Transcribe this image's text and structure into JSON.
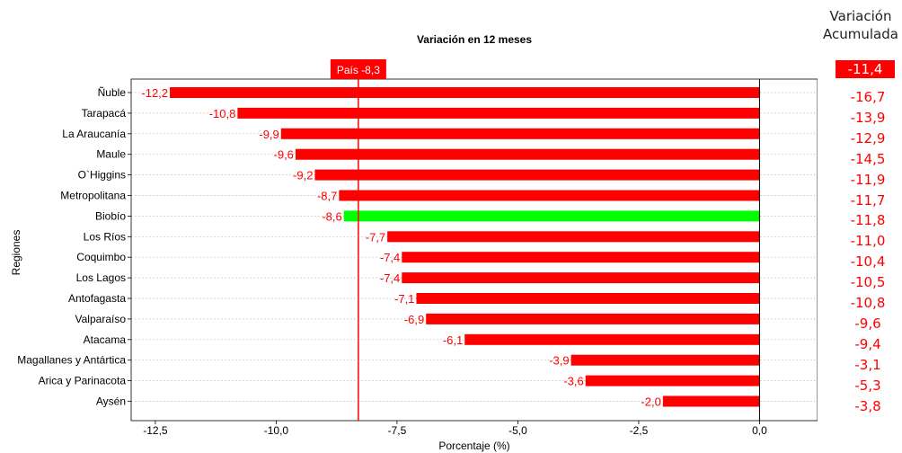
{
  "chart_data": {
    "type": "bar",
    "orientation": "horizontal",
    "title": "Variación en 12 meses",
    "xlabel": "Porcentaje (%)",
    "ylabel": "Regiones",
    "xlim": [
      -13.0,
      1.2
    ],
    "x_ticks": [
      -12.5,
      -10.0,
      -7.5,
      -5.0,
      -2.5,
      0.0
    ],
    "x_tick_labels": [
      "-12,5",
      "-10,0",
      "-7,5",
      "-5,0",
      "-2,5",
      "0,0"
    ],
    "grid": "horizontal dotted",
    "categories": [
      "Ñuble",
      "Tarapacá",
      "La Araucanía",
      "Maule",
      "O`Higgins",
      "Metropolitana",
      "Biobío",
      "Los Ríos",
      "Coquimbo",
      "Los Lagos",
      "Antofagasta",
      "Valparaíso",
      "Atacama",
      "Magallanes y Antártica",
      "Arica y Parinacota",
      "Aysén"
    ],
    "values": [
      -12.2,
      -10.8,
      -9.9,
      -9.6,
      -9.2,
      -8.7,
      -8.6,
      -7.7,
      -7.4,
      -7.4,
      -7.1,
      -6.9,
      -6.1,
      -3.9,
      -3.6,
      -2.0
    ],
    "value_labels": [
      "-12,2",
      "-10,8",
      "-9,9",
      "-9,6",
      "-9,2",
      "-8,7",
      "-8,6",
      "-7,7",
      "-7,4",
      "-7,4",
      "-7,1",
      "-6,9",
      "-6,1",
      "-3,9",
      "-3,6",
      "-2,0"
    ],
    "highlight_category": "Biobío",
    "colors": {
      "bar": "#ff0000",
      "highlight": "#00ff00",
      "reference": "#ff0000",
      "label": "#ff0000"
    },
    "reference_line": {
      "value": -8.3,
      "label": "País -8,3"
    }
  },
  "accumulated": {
    "header_line1": "Variación",
    "header_line2": "Acumulada",
    "country_value": "-11,4",
    "values": [
      "-16,7",
      "-13,9",
      "-12,9",
      "-14,5",
      "-11,9",
      "-11,7",
      "-11,8",
      "-11,0",
      "-10,4",
      "-10,5",
      "-10,8",
      "-9,6",
      "-9,4",
      "-3,1",
      "-5,3",
      "-3,8"
    ]
  }
}
